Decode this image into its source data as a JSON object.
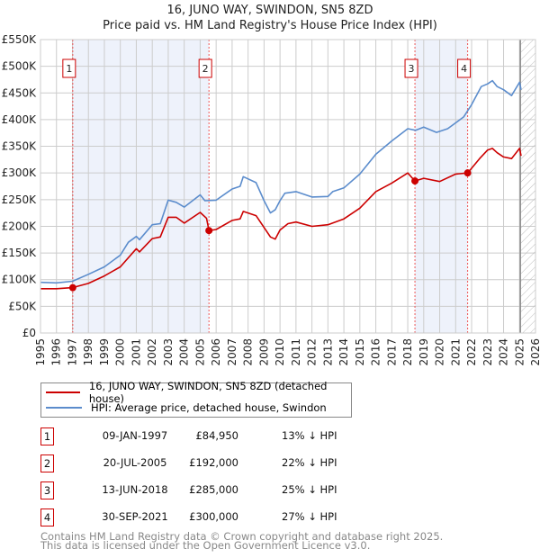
{
  "title": "16, JUNO WAY, SWINDON, SN5 8ZD",
  "subtitle": "Price paid vs. HM Land Registry's House Price Index (HPI)",
  "legend": {
    "red": "16, JUNO WAY, SWINDON, SN5 8ZD (detached house)",
    "blue": "HPI: Average price, detached house, Swindon"
  },
  "sales": [
    {
      "num": "1",
      "date": "09-JAN-1997",
      "price": "£84,950",
      "pct": "13% ↓ HPI"
    },
    {
      "num": "2",
      "date": "20-JUL-2005",
      "price": "£192,000",
      "pct": "22% ↓ HPI"
    },
    {
      "num": "3",
      "date": "13-JUN-2018",
      "price": "£285,000",
      "pct": "25% ↓ HPI"
    },
    {
      "num": "4",
      "date": "30-SEP-2021",
      "price": "£300,000",
      "pct": "27% ↓ HPI"
    }
  ],
  "footer": {
    "line1": "Contains HM Land Registry data © Crown copyright and database right 2025.",
    "line2": "This data is licensed under the Open Government Licence v3.0."
  },
  "colors": {
    "red": "#cc0000",
    "blue": "#5b8ccc",
    "shade": "#eef2fb",
    "grid": "#cccccc"
  },
  "chart_data": {
    "type": "line",
    "title": "16, JUNO WAY, SWINDON, SN5 8ZD",
    "xlim": [
      1995,
      2026
    ],
    "ylim": [
      0,
      550000
    ],
    "x_ticks": [
      "1995",
      "1996",
      "1997",
      "1998",
      "1999",
      "2000",
      "2001",
      "2002",
      "2003",
      "2004",
      "2005",
      "2006",
      "2007",
      "2008",
      "2009",
      "2010",
      "2011",
      "2012",
      "2013",
      "2014",
      "2015",
      "2016",
      "2017",
      "2018",
      "2019",
      "2020",
      "2021",
      "2022",
      "2023",
      "2024",
      "2025",
      "2026"
    ],
    "y_ticks": [
      {
        "v": 0,
        "label": "£0"
      },
      {
        "v": 50000,
        "label": "£50K"
      },
      {
        "v": 100000,
        "label": "£100K"
      },
      {
        "v": 150000,
        "label": "£150K"
      },
      {
        "v": 200000,
        "label": "£200K"
      },
      {
        "v": 250000,
        "label": "£250K"
      },
      {
        "v": 300000,
        "label": "£300K"
      },
      {
        "v": 350000,
        "label": "£350K"
      },
      {
        "v": 400000,
        "label": "£400K"
      },
      {
        "v": 450000,
        "label": "£450K"
      },
      {
        "v": 500000,
        "label": "£500K"
      },
      {
        "v": 550000,
        "label": "£550K"
      }
    ],
    "series": [
      {
        "name": "16, JUNO WAY, SWINDON, SN5 8ZD (detached house)",
        "color": "#cc0000",
        "x": [
          1995,
          1996,
          1997,
          1998,
          1999,
          2000,
          2001,
          2001.2,
          2002,
          2002.5,
          2003,
          2003.5,
          2004,
          2005,
          2005.4,
          2005.55,
          2006,
          2007,
          2007.5,
          2007.7,
          2008.5,
          2009.4,
          2009.7,
          2010,
          2010.5,
          2011,
          2012,
          2013,
          2014,
          2015,
          2016,
          2017,
          2018,
          2018.45,
          2019,
          2020,
          2021,
          2021.75,
          2022.5,
          2023,
          2023.3,
          2023.6,
          2024,
          2024.5,
          2025,
          2025.1
        ],
        "y": [
          83000,
          83000,
          84950,
          93000,
          107000,
          124000,
          158000,
          152000,
          177000,
          180000,
          217000,
          217000,
          206000,
          226000,
          215000,
          192000,
          194000,
          211000,
          214000,
          228000,
          220000,
          180000,
          176000,
          193000,
          205000,
          208000,
          200000,
          203000,
          214000,
          234000,
          265000,
          281000,
          300000,
          285000,
          290000,
          284000,
          298000,
          300000,
          327000,
          343000,
          346000,
          338000,
          330000,
          327000,
          346000,
          332000
        ]
      },
      {
        "name": "HPI: Average price, detached house, Swindon",
        "color": "#5b8ccc",
        "x": [
          1995,
          1996,
          1997,
          1998,
          1999,
          2000,
          2000.5,
          2001,
          2001.2,
          2002,
          2002.5,
          2003,
          2003.5,
          2004,
          2005,
          2005.3,
          2006,
          2007,
          2007.5,
          2007.7,
          2008.5,
          2009,
          2009.4,
          2009.7,
          2010,
          2010.3,
          2011,
          2012,
          2013,
          2013.3,
          2014,
          2015,
          2016,
          2017,
          2018,
          2018.5,
          2019,
          2019.8,
          2020.5,
          2021,
          2021.5,
          2022,
          2022.6,
          2023,
          2023.3,
          2023.6,
          2024,
          2024.5,
          2025,
          2025.1
        ],
        "y": [
          95000,
          94000,
          97000,
          110000,
          124000,
          146000,
          170000,
          181000,
          175000,
          203000,
          205000,
          249000,
          245000,
          236000,
          259000,
          248000,
          249000,
          270000,
          275000,
          293000,
          282000,
          248000,
          225000,
          231000,
          248000,
          262000,
          265000,
          255000,
          256000,
          265000,
          272000,
          298000,
          335000,
          360000,
          383000,
          380000,
          386000,
          376000,
          383000,
          394000,
          405000,
          428000,
          462000,
          467000,
          473000,
          462000,
          456000,
          445000,
          470000,
          456000
        ]
      }
    ],
    "sales_markers": [
      {
        "label": "1",
        "x": 1997.02,
        "y": 84950
      },
      {
        "label": "2",
        "x": 2005.55,
        "y": 192000
      },
      {
        "label": "3",
        "x": 2018.45,
        "y": 285000
      },
      {
        "label": "4",
        "x": 2021.75,
        "y": 300000
      }
    ],
    "shaded_ranges": [
      [
        1997.02,
        2005.55
      ],
      [
        2018.45,
        2021.75
      ]
    ],
    "forecast_hatch_from": 2025.05
  }
}
